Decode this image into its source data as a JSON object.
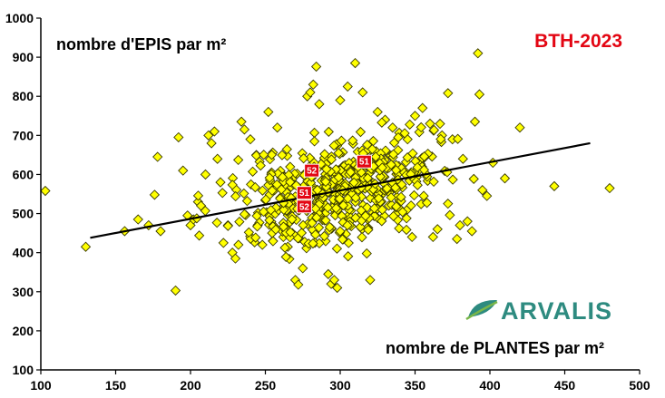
{
  "chart_data": {
    "type": "scatter",
    "title": "nombre d'EPIS par m²",
    "xlabel": "nombre de PLANTES par m²",
    "ylabel": "nombre d'EPIS par m²",
    "badge": "BTH-2023",
    "logo": "ARVALIS",
    "xlim": [
      100,
      500
    ],
    "ylim": [
      100,
      1000
    ],
    "xticks": [
      100,
      150,
      200,
      250,
      300,
      350,
      400,
      450,
      500
    ],
    "yticks": [
      100,
      200,
      300,
      400,
      500,
      600,
      700,
      800,
      900,
      1000
    ],
    "grid": false,
    "marker": "diamond",
    "colors": {
      "marker_fill": "#ffff00",
      "marker_stroke": "#3a3a00",
      "trend": "#000000",
      "highlight": "#e30613",
      "brand": "#e30613",
      "logo": "#2e8b80"
    },
    "trendline": {
      "x": [
        133,
        467
      ],
      "y": [
        438,
        680
      ]
    },
    "highlights": [
      {
        "label": "52",
        "x": 281,
        "y": 610
      },
      {
        "label": "51",
        "x": 316,
        "y": 633
      },
      {
        "label": "51",
        "x": 276,
        "y": 553
      },
      {
        "label": "52",
        "x": 276,
        "y": 518
      }
    ],
    "highlight_labels": [
      "52",
      "51",
      "51",
      "52"
    ],
    "point_count": 640,
    "seed": 2023,
    "points": [
      [
        103,
        558
      ],
      [
        130,
        415
      ],
      [
        156,
        455
      ],
      [
        165,
        485
      ],
      [
        172,
        470
      ],
      [
        176,
        548
      ],
      [
        178,
        645
      ],
      [
        180,
        455
      ],
      [
        190,
        303
      ],
      [
        192,
        695
      ],
      [
        195,
        610
      ],
      [
        198,
        495
      ],
      [
        200,
        470
      ],
      [
        202,
        485
      ],
      [
        205,
        530
      ],
      [
        207,
        520
      ],
      [
        210,
        600
      ],
      [
        212,
        700
      ],
      [
        214,
        680
      ],
      [
        216,
        710
      ],
      [
        218,
        640
      ],
      [
        220,
        580
      ],
      [
        222,
        425
      ],
      [
        225,
        470
      ],
      [
        228,
        400
      ],
      [
        230,
        385
      ],
      [
        232,
        420
      ],
      [
        234,
        735
      ],
      [
        236,
        715
      ],
      [
        240,
        690
      ],
      [
        244,
        650
      ],
      [
        248,
        420
      ],
      [
        252,
        760
      ],
      [
        255,
        430
      ],
      [
        258,
        720
      ],
      [
        262,
        440
      ],
      [
        265,
        415
      ],
      [
        268,
        450
      ],
      [
        270,
        330
      ],
      [
        272,
        318
      ],
      [
        275,
        360
      ],
      [
        278,
        800
      ],
      [
        280,
        810
      ],
      [
        282,
        830
      ],
      [
        284,
        876
      ],
      [
        286,
        780
      ],
      [
        288,
        560
      ],
      [
        290,
        500
      ],
      [
        292,
        345
      ],
      [
        294,
        320
      ],
      [
        296,
        330
      ],
      [
        298,
        310
      ],
      [
        300,
        790
      ],
      [
        305,
        825
      ],
      [
        310,
        885
      ],
      [
        315,
        810
      ],
      [
        320,
        330
      ],
      [
        325,
        760
      ],
      [
        330,
        740
      ],
      [
        335,
        720
      ],
      [
        340,
        700
      ],
      [
        345,
        690
      ],
      [
        348,
        440
      ],
      [
        350,
        750
      ],
      [
        355,
        770
      ],
      [
        360,
        730
      ],
      [
        362,
        440
      ],
      [
        365,
        460
      ],
      [
        368,
        700
      ],
      [
        372,
        808
      ],
      [
        375,
        690
      ],
      [
        378,
        435
      ],
      [
        380,
        470
      ],
      [
        382,
        640
      ],
      [
        385,
        480
      ],
      [
        388,
        455
      ],
      [
        390,
        735
      ],
      [
        392,
        910
      ],
      [
        393,
        805
      ],
      [
        395,
        560
      ],
      [
        398,
        545
      ],
      [
        402,
        630
      ],
      [
        410,
        590
      ],
      [
        420,
        720
      ],
      [
        443,
        570
      ],
      [
        480,
        565
      ]
    ]
  }
}
